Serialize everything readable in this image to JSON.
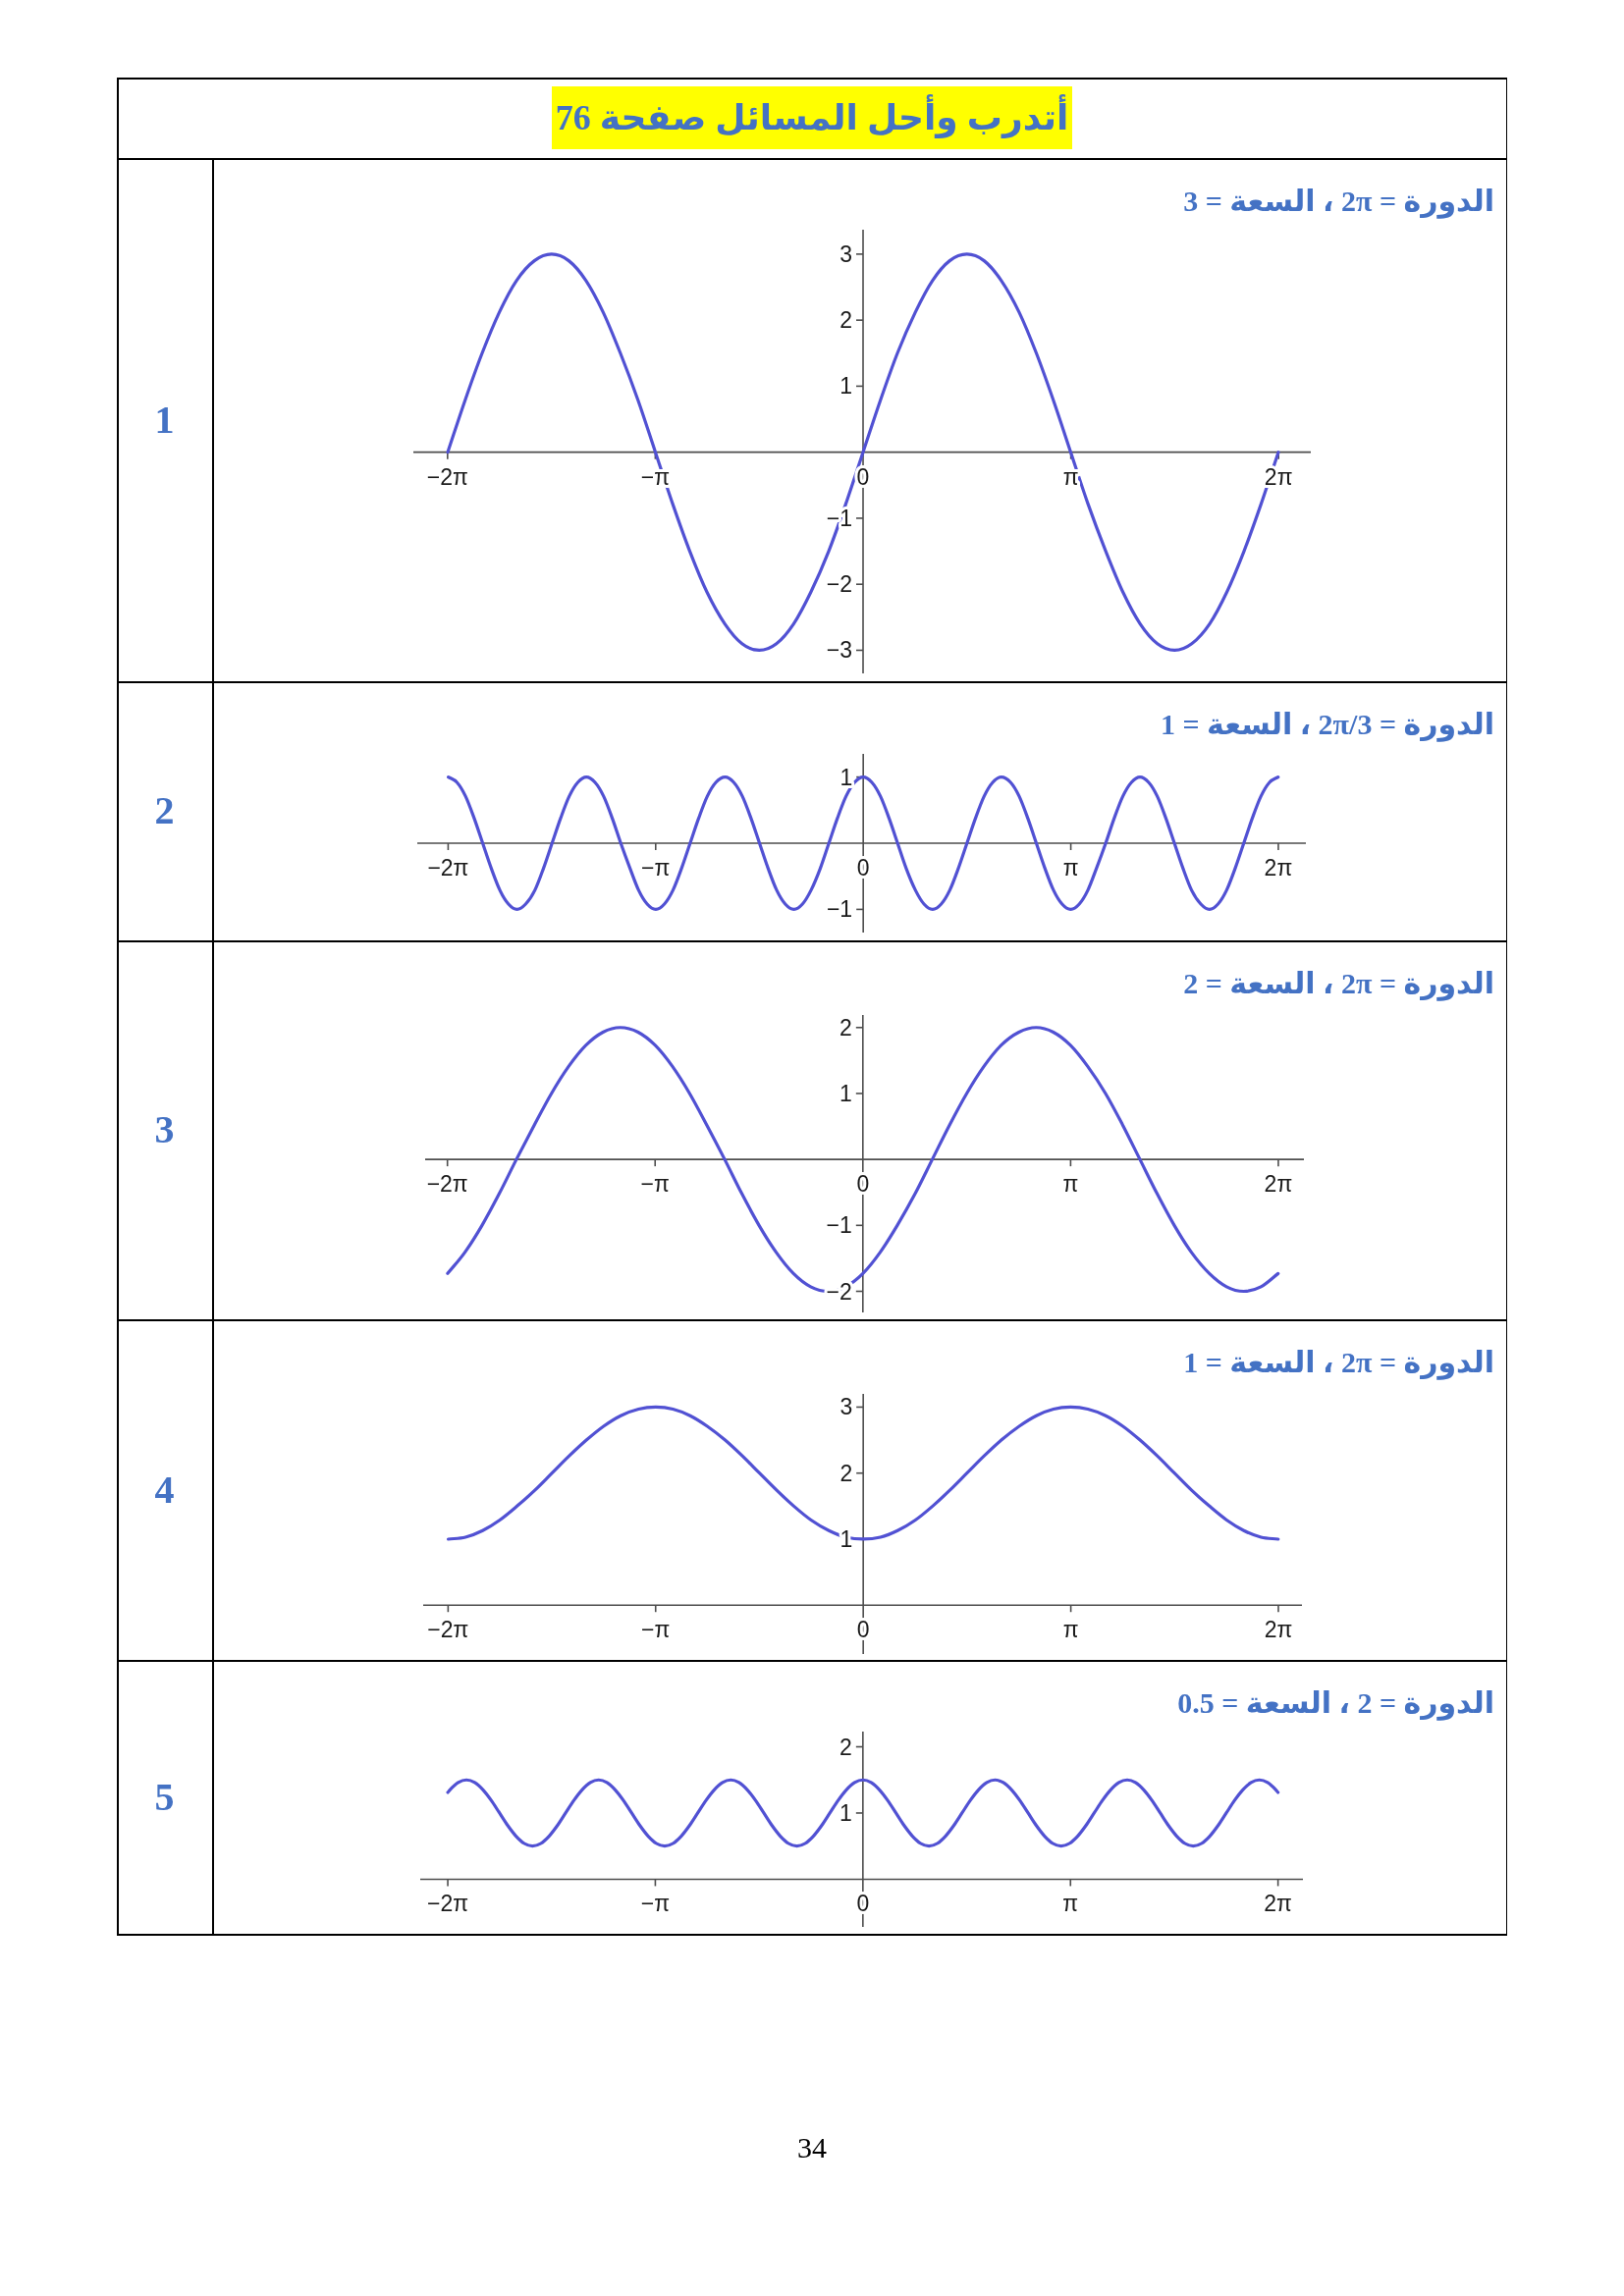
{
  "chart_data": [
    {
      "type": "line",
      "title": "الدورة = 2π ، السعة = 3",
      "annotations": [
        "1",
        "أتدرب وأحل المسائل صفحة 76"
      ],
      "xlim": [
        -6.8,
        6.77
      ],
      "ylim": [
        -3.35,
        3.37
      ],
      "xticks": [
        {
          "value": -6.283,
          "label": "−2π"
        },
        {
          "value": -3.142,
          "label": "−π"
        },
        {
          "value": 0,
          "label": "0"
        },
        {
          "value": 3.142,
          "label": "π"
        },
        {
          "value": 6.283,
          "label": "2π"
        }
      ],
      "yticks": [
        {
          "value": -3,
          "label": "−3"
        },
        {
          "value": -2,
          "label": "−2"
        },
        {
          "value": -1,
          "label": "−1"
        },
        1,
        2,
        3
      ],
      "color": "#5151d3",
      "x": [
        -6.28,
        -6.02,
        -5.76,
        -5.5,
        -5.24,
        -4.97,
        -4.71,
        -4.45,
        -4.19,
        -3.93,
        -3.67,
        -3.4,
        -3.14,
        -2.88,
        -2.62,
        -2.36,
        -2.09,
        -1.83,
        -1.57,
        -1.31,
        -1.05,
        -0.79,
        -0.52,
        -0.26,
        0,
        0.26,
        0.52,
        0.79,
        1.05,
        1.31,
        1.57,
        1.83,
        2.09,
        2.36,
        2.62,
        2.88,
        3.14,
        3.4,
        3.67,
        3.93,
        4.19,
        4.45,
        4.71,
        4.97,
        5.24,
        5.5,
        5.76,
        6.02,
        6.28
      ],
      "values": [
        0,
        0.78,
        1.5,
        2.12,
        2.6,
        2.9,
        3,
        2.9,
        2.6,
        2.12,
        1.5,
        0.78,
        0,
        -0.78,
        -1.5,
        -2.12,
        -2.6,
        -2.9,
        -3,
        -2.9,
        -2.6,
        -2.12,
        -1.5,
        -0.78,
        0,
        0.78,
        1.5,
        2.12,
        2.6,
        2.9,
        3,
        2.9,
        2.6,
        2.12,
        1.5,
        0.78,
        0,
        -0.78,
        -1.5,
        -2.12,
        -2.6,
        -2.9,
        -3,
        -2.9,
        -2.6,
        -2.12,
        -1.5,
        -0.78,
        0
      ]
    },
    {
      "type": "line",
      "title": "الدورة = 2π/3 ، السعة = 1",
      "annotations": [
        "2"
      ],
      "xlim": [
        -6.75,
        6.7
      ],
      "ylim": [
        -1.35,
        1.35
      ],
      "xticks": [
        {
          "value": -6.283,
          "label": "−2π"
        },
        {
          "value": -3.142,
          "label": "−π"
        },
        {
          "value": 0,
          "label": "0"
        },
        {
          "value": 3.142,
          "label": "π"
        },
        {
          "value": 6.283,
          "label": "2π"
        }
      ],
      "yticks": [
        {
          "value": -1,
          "label": "−1"
        },
        1
      ],
      "color": "#5151d3",
      "x": [
        -6.28,
        -6.15,
        -6.02,
        -5.89,
        -5.76,
        -5.63,
        -5.5,
        -5.37,
        -5.24,
        -5.11,
        -4.97,
        -4.84,
        -4.71,
        -4.58,
        -4.45,
        -4.32,
        -4.19,
        -4.06,
        -3.93,
        -3.8,
        -3.67,
        -3.53,
        -3.4,
        -3.27,
        -3.14,
        -3.01,
        -2.88,
        -2.75,
        -2.62,
        -2.49,
        -2.36,
        -2.23,
        -2.09,
        -1.96,
        -1.83,
        -1.7,
        -1.57,
        -1.44,
        -1.31,
        -1.18,
        -1.05,
        -0.92,
        -0.79,
        -0.65,
        -0.52,
        -0.39,
        -0.26,
        -0.13,
        0,
        0.13,
        0.26,
        0.39,
        0.52,
        0.65,
        0.79,
        0.92,
        1.05,
        1.18,
        1.31,
        1.44,
        1.57,
        1.7,
        1.83,
        1.96,
        2.09,
        2.23,
        2.36,
        2.49,
        2.62,
        2.75,
        2.88,
        3.01,
        3.14,
        3.27,
        3.4,
        3.53,
        3.67,
        3.8,
        3.93,
        4.06,
        4.19,
        4.32,
        4.45,
        4.58,
        4.71,
        4.84,
        4.97,
        5.11,
        5.24,
        5.37,
        5.5,
        5.63,
        5.76,
        5.89,
        6.02,
        6.15,
        6.28
      ],
      "values": [
        1,
        0.92,
        0.71,
        0.38,
        0,
        -0.38,
        -0.71,
        -0.92,
        -1,
        -0.92,
        -0.71,
        -0.38,
        0,
        0.38,
        0.71,
        0.92,
        1,
        0.92,
        0.71,
        0.38,
        0,
        -0.38,
        -0.71,
        -0.92,
        -1,
        -0.92,
        -0.71,
        -0.38,
        0,
        0.38,
        0.71,
        0.92,
        1,
        0.92,
        0.71,
        0.38,
        0,
        -0.38,
        -0.71,
        -0.92,
        -1,
        -0.92,
        -0.71,
        -0.38,
        0,
        0.38,
        0.71,
        0.92,
        1,
        0.92,
        0.71,
        0.38,
        0,
        -0.38,
        -0.71,
        -0.92,
        -1,
        -0.92,
        -0.71,
        -0.38,
        0,
        0.38,
        0.71,
        0.92,
        1,
        0.92,
        0.71,
        0.38,
        0,
        -0.38,
        -0.71,
        -0.92,
        -1,
        -0.92,
        -0.71,
        -0.38,
        0,
        0.38,
        0.71,
        0.92,
        1,
        0.92,
        0.71,
        0.38,
        0,
        -0.38,
        -0.71,
        -0.92,
        -1,
        -0.92,
        -0.71,
        -0.38,
        0,
        0.38,
        0.71,
        0.92,
        1
      ]
    },
    {
      "type": "line",
      "title": "الدورة = 2π ، السعة = 2",
      "annotations": [
        "3"
      ],
      "xlim": [
        -6.62,
        6.67
      ],
      "ylim": [
        -2.32,
        2.19
      ],
      "xticks": [
        {
          "value": -6.283,
          "label": "−2π"
        },
        {
          "value": -3.142,
          "label": "−π"
        },
        {
          "value": 0,
          "label": "0"
        },
        {
          "value": 3.142,
          "label": "π"
        },
        {
          "value": 6.283,
          "label": "2π"
        }
      ],
      "yticks": [
        {
          "value": -2,
          "label": "−2"
        },
        {
          "value": -1,
          "label": "−1"
        },
        1,
        2
      ],
      "color": "#5151d3",
      "x": [
        -6.28,
        -6.02,
        -5.76,
        -5.5,
        -5.24,
        -4.97,
        -4.71,
        -4.45,
        -4.19,
        -3.93,
        -3.67,
        -3.4,
        -3.14,
        -2.88,
        -2.62,
        -2.36,
        -2.09,
        -1.83,
        -1.57,
        -1.31,
        -1.05,
        -0.79,
        -0.52,
        -0.26,
        0,
        0.26,
        0.52,
        0.79,
        1.05,
        1.31,
        1.57,
        1.83,
        2.09,
        2.36,
        2.62,
        2.88,
        3.14,
        3.4,
        3.67,
        3.93,
        4.19,
        4.45,
        4.71,
        4.97,
        5.24,
        5.5,
        5.76,
        6.02,
        6.28
      ],
      "values": [
        -1.73,
        -1.41,
        -1,
        -0.52,
        0,
        0.52,
        1,
        1.41,
        1.73,
        1.93,
        2,
        1.93,
        1.73,
        1.41,
        1,
        0.52,
        0,
        -0.52,
        -1,
        -1.41,
        -1.73,
        -1.93,
        -2,
        -1.93,
        -1.73,
        -1.41,
        -1,
        -0.52,
        0,
        0.52,
        1,
        1.41,
        1.73,
        1.93,
        2,
        1.93,
        1.73,
        1.41,
        1,
        0.52,
        0,
        -0.52,
        -1,
        -1.41,
        -1.73,
        -1.93,
        -2,
        -1.93,
        -1.73
      ]
    },
    {
      "type": "line",
      "title": "الدورة = 2π ، السعة = 1",
      "annotations": [
        "4"
      ],
      "xlim": [
        -6.66,
        6.64
      ],
      "ylim": [
        -0.74,
        3.2
      ],
      "xticks": [
        {
          "value": -6.283,
          "label": "−2π"
        },
        {
          "value": -3.142,
          "label": "−π"
        },
        {
          "value": 0,
          "label": "0"
        },
        {
          "value": 3.142,
          "label": "π"
        },
        {
          "value": 6.283,
          "label": "2π"
        }
      ],
      "yticks": [
        1,
        2,
        3
      ],
      "color": "#5151d3",
      "x": [
        -6.28,
        -6.02,
        -5.76,
        -5.5,
        -5.24,
        -4.97,
        -4.71,
        -4.45,
        -4.19,
        -3.93,
        -3.67,
        -3.4,
        -3.14,
        -2.88,
        -2.62,
        -2.36,
        -2.09,
        -1.83,
        -1.57,
        -1.31,
        -1.05,
        -0.79,
        -0.52,
        -0.26,
        0,
        0.26,
        0.52,
        0.79,
        1.05,
        1.31,
        1.57,
        1.83,
        2.09,
        2.36,
        2.62,
        2.88,
        3.14,
        3.4,
        3.67,
        3.93,
        4.19,
        4.45,
        4.71,
        4.97,
        5.24,
        5.5,
        5.76,
        6.02,
        6.28
      ],
      "values": [
        1,
        1.03,
        1.13,
        1.29,
        1.5,
        1.74,
        2,
        2.26,
        2.5,
        2.71,
        2.87,
        2.97,
        3,
        2.97,
        2.87,
        2.71,
        2.5,
        2.26,
        2,
        1.74,
        1.5,
        1.29,
        1.13,
        1.03,
        1,
        1.03,
        1.13,
        1.29,
        1.5,
        1.74,
        2,
        2.26,
        2.5,
        2.71,
        2.87,
        2.97,
        3,
        2.97,
        2.87,
        2.71,
        2.5,
        2.26,
        2,
        1.74,
        1.5,
        1.29,
        1.13,
        1.03,
        1
      ]
    },
    {
      "type": "line",
      "title": "الدورة = 2 ، السعة = 0.5",
      "annotations": [
        "5",
        "34"
      ],
      "xlim": [
        -6.7,
        6.66
      ],
      "ylim": [
        -0.72,
        2.23
      ],
      "xticks": [
        {
          "value": -6.283,
          "label": "−2π"
        },
        {
          "value": -3.142,
          "label": "−π"
        },
        {
          "value": 0,
          "label": "0"
        },
        {
          "value": 3.142,
          "label": "π"
        },
        {
          "value": 6.283,
          "label": "2π"
        }
      ],
      "yticks": [
        1,
        2
      ],
      "color": "#5151d3",
      "x": [
        -6.283,
        -6.25,
        -6.125,
        -6,
        -5.875,
        -5.75,
        -5.625,
        -5.5,
        -5.375,
        -5.25,
        -5.125,
        -5,
        -4.875,
        -4.75,
        -4.625,
        -4.5,
        -4.375,
        -4.25,
        -4.125,
        -4,
        -3.875,
        -3.75,
        -3.625,
        -3.5,
        -3.375,
        -3.25,
        -3.125,
        -3,
        -2.875,
        -2.75,
        -2.625,
        -2.5,
        -2.375,
        -2.25,
        -2.125,
        -2,
        -1.875,
        -1.75,
        -1.625,
        -1.5,
        -1.375,
        -1.25,
        -1.125,
        -1,
        -0.875,
        -0.75,
        -0.625,
        -0.5,
        -0.375,
        -0.25,
        -0.125,
        0,
        0.125,
        0.25,
        0.375,
        0.5,
        0.625,
        0.75,
        0.875,
        1,
        1.125,
        1.25,
        1.375,
        1.5,
        1.625,
        1.75,
        1.875,
        2,
        2.125,
        2.25,
        2.375,
        2.5,
        2.625,
        2.75,
        2.875,
        3,
        3.125,
        3.25,
        3.375,
        3.5,
        3.625,
        3.75,
        3.875,
        4,
        4.125,
        4.25,
        4.375,
        4.5,
        4.625,
        4.75,
        4.875,
        5,
        5.125,
        5.25,
        5.375,
        5.5,
        5.625,
        5.75,
        5.875,
        6,
        6.125,
        6.25,
        6.283
      ],
      "values": [
        1.31,
        1.35,
        1.46,
        1.5,
        1.46,
        1.35,
        1.19,
        1,
        0.81,
        0.65,
        0.54,
        0.5,
        0.54,
        0.65,
        0.81,
        1,
        1.19,
        1.35,
        1.46,
        1.5,
        1.46,
        1.35,
        1.19,
        1,
        0.81,
        0.65,
        0.54,
        0.5,
        0.54,
        0.65,
        0.81,
        1,
        1.19,
        1.35,
        1.46,
        1.5,
        1.46,
        1.35,
        1.19,
        1,
        0.81,
        0.65,
        0.54,
        0.5,
        0.54,
        0.65,
        0.81,
        1,
        1.19,
        1.35,
        1.46,
        1.5,
        1.46,
        1.35,
        1.19,
        1,
        0.81,
        0.65,
        0.54,
        0.5,
        0.54,
        0.65,
        0.81,
        1,
        1.19,
        1.35,
        1.46,
        1.5,
        1.46,
        1.35,
        1.19,
        1,
        0.81,
        0.65,
        0.54,
        0.5,
        0.54,
        0.65,
        0.81,
        1,
        1.19,
        1.35,
        1.46,
        1.5,
        1.46,
        1.35,
        1.19,
        1,
        0.81,
        0.65,
        0.54,
        0.5,
        0.54,
        0.65,
        0.81,
        1,
        1.19,
        1.35,
        1.46,
        1.5,
        1.46,
        1.35,
        1.31
      ]
    }
  ]
}
